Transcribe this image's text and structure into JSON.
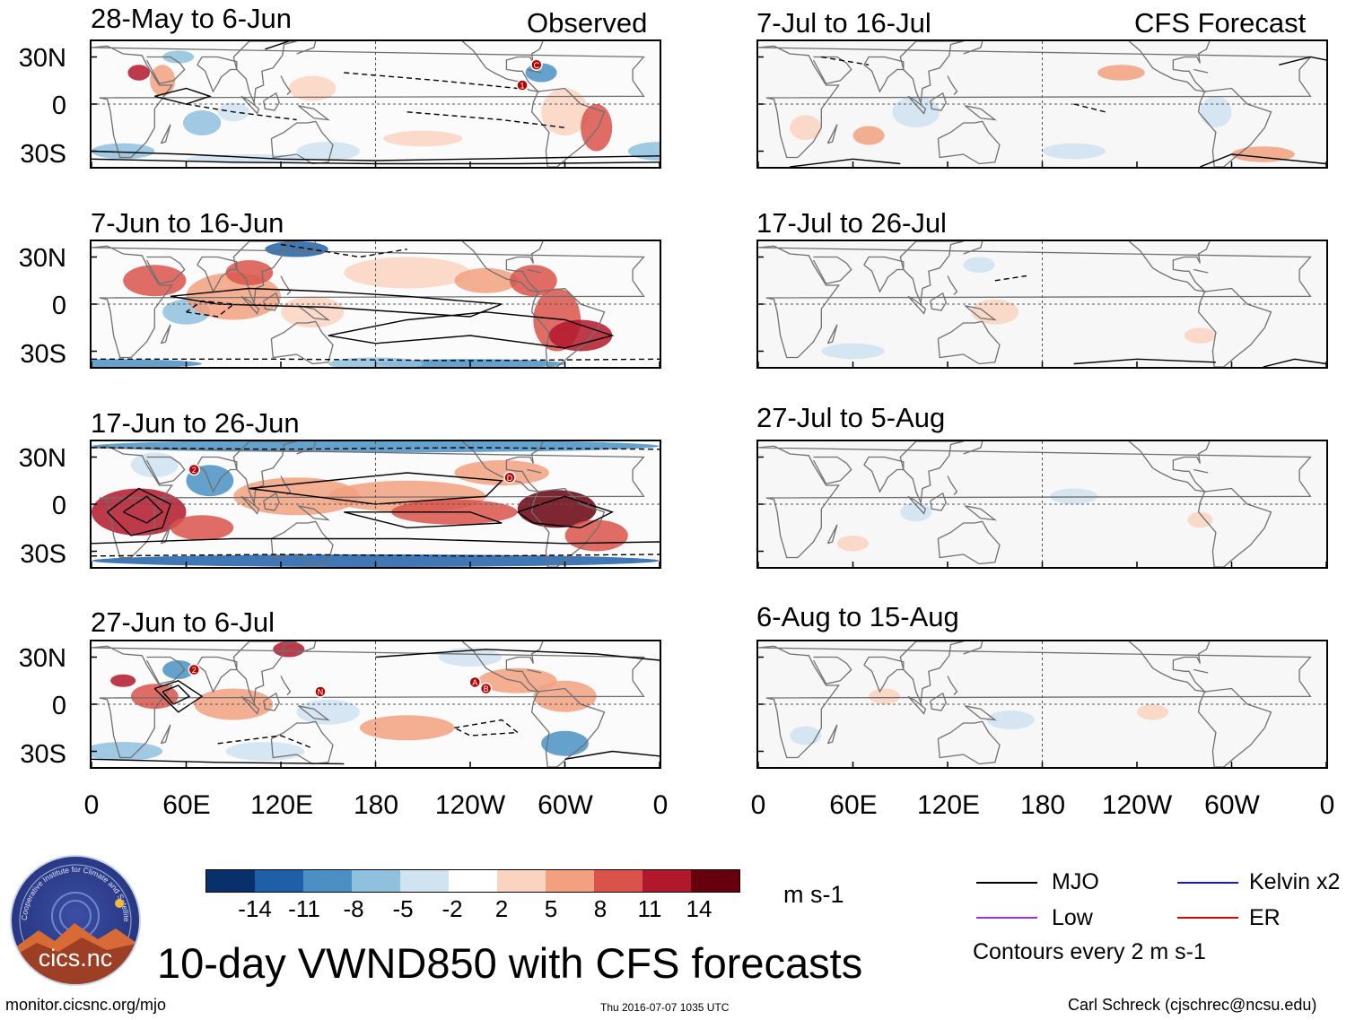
{
  "title": "10-day VWND850 with CFS forecasts",
  "observed_header": "Observed",
  "forecast_header": "CFS Forecast",
  "observed_panels": [
    "28-May to 6-Jun",
    "7-Jun to 16-Jun",
    "17-Jun to 26-Jun",
    "27-Jun to 6-Jul"
  ],
  "forecast_panels": [
    "7-Jul to 16-Jul",
    "17-Jul to 26-Jul",
    "27-Jul to 5-Aug",
    "6-Aug to 15-Aug"
  ],
  "lat_labels": [
    "30N",
    "0",
    "30S"
  ],
  "lon_labels": [
    "0",
    "60E",
    "120E",
    "180",
    "120W",
    "60W",
    "0"
  ],
  "colorbar": {
    "colors": [
      "#08306b",
      "#1f5fa8",
      "#4a90c4",
      "#8fc0de",
      "#cfe3f1",
      "#ffffff",
      "#fbd4c1",
      "#f2a07f",
      "#d9534b",
      "#b2182b",
      "#67000d"
    ],
    "ticks": [
      "-14",
      "-11",
      "-8",
      "-5",
      "-2",
      "2",
      "5",
      "8",
      "11",
      "14"
    ],
    "units": "m s-1"
  },
  "legend": {
    "items": [
      {
        "label": "MJO",
        "color": "#000000"
      },
      {
        "label": "Kelvin x2",
        "color": "#1a1acc"
      },
      {
        "label": "Low",
        "color": "#9b30d9"
      },
      {
        "label": "ER",
        "color": "#d90000"
      }
    ],
    "note": "Contours every 2 m s-1"
  },
  "logo_text": "cics.nc",
  "logo_ring_text": "Cooperative Institute for Climate and Satellites",
  "footer_left": "monitor.cicsnc.org/mjo",
  "footer_center": "Thu 2016-07-07 1035 UTC",
  "footer_right": "Carl Schreck (cjschrec@ncsu.edu)",
  "markers": [
    {
      "panel": 0,
      "label": "1",
      "lon": 273,
      "lat": 12
    },
    {
      "panel": 0,
      "label": "C",
      "lon": 282,
      "lat": 25
    },
    {
      "panel": 2,
      "label": "2",
      "lon": 65,
      "lat": 22
    },
    {
      "panel": 2,
      "label": "D",
      "lon": 265,
      "lat": 17
    },
    {
      "panel": 3,
      "label": "2",
      "lon": 65,
      "lat": 22
    },
    {
      "panel": 3,
      "label": "N",
      "lon": 145,
      "lat": 8
    },
    {
      "panel": 3,
      "label": "A",
      "lon": 243,
      "lat": 14
    },
    {
      "panel": 3,
      "label": "B",
      "lon": 250,
      "lat": 10
    }
  ]
}
